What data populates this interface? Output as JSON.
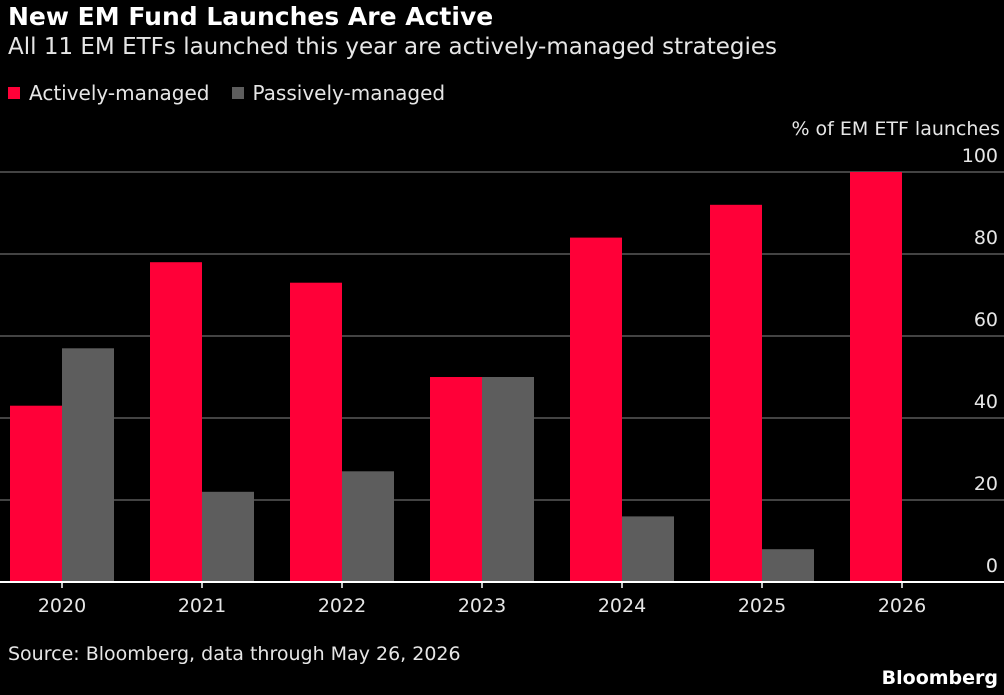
{
  "title": "New EM Fund Launches Are Active",
  "subtitle": "All 11 EM ETFs launched this year are actively-managed strategies",
  "source": "Source: Bloomberg, data through May 26, 2026",
  "brand": "Bloomberg",
  "colors": {
    "active": "#ff0038",
    "passive": "#5d5d5d",
    "grid": "#6b6b6b",
    "axis": "#ffffff",
    "background": "#000000"
  },
  "chart_data": {
    "type": "bar",
    "categories": [
      "2020",
      "2021",
      "2022",
      "2023",
      "2024",
      "2025",
      "2026"
    ],
    "series": [
      {
        "name": "Actively-managed",
        "values": [
          43,
          78,
          73,
          50,
          84,
          92,
          100
        ]
      },
      {
        "name": "Passively-managed",
        "values": [
          57,
          22,
          27,
          50,
          16,
          8,
          0
        ]
      }
    ],
    "ylabel": "% of EM ETF launches",
    "ylim": [
      0,
      100
    ],
    "yticks": [
      0,
      20,
      40,
      60,
      80,
      100
    ],
    "grid": true,
    "legend_position": "top-left"
  }
}
